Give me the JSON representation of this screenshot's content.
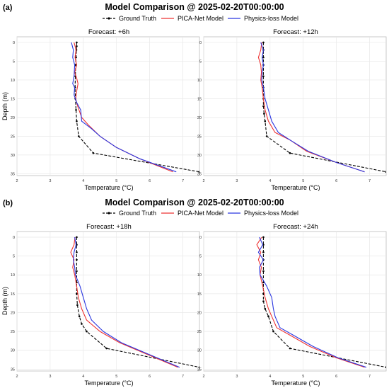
{
  "colors": {
    "ground_truth": "#000000",
    "pica": "#ee3333",
    "physics": "#2a36e0",
    "grid": "#e8e8e8",
    "frame": "#bbbbbb"
  },
  "legend_labels": [
    "Ground Truth",
    "PICA-Net Model",
    "Physics-loss Model"
  ],
  "chart_data": [
    {
      "panel_label": "(a)",
      "title": "Model Comparison @ 2025-02-20T00:00:00",
      "subplots": [
        {
          "type": "line",
          "title": "Forecast: +6h",
          "xlabel": "Temperature (°C)",
          "ylabel": "Depth (m)",
          "xlim": [
            2,
            7.5
          ],
          "ylim": [
            35.5,
            -1.5
          ],
          "inverted_y": true,
          "xticks": [
            2,
            3,
            4,
            5,
            6,
            7
          ],
          "yticks": [
            0,
            5,
            10,
            15,
            20,
            25,
            30,
            35
          ],
          "grid": true,
          "series": [
            {
              "name": "Ground Truth",
              "style": "dashed-dot-markers",
              "x": [
                3.8,
                3.8,
                3.79,
                3.78,
                3.77,
                3.76,
                3.75,
                3.76,
                3.78,
                3.8,
                3.86,
                4.3,
                7.5
              ],
              "y": [
                0,
                1,
                2,
                4,
                6,
                9,
                12,
                15,
                18,
                21,
                25,
                29.5,
                34.5
              ]
            },
            {
              "name": "PICA-Net Model",
              "x": [
                3.72,
                3.78,
                3.75,
                3.8,
                3.74,
                3.8,
                3.84,
                3.8,
                3.77,
                3.83,
                3.95,
                4.15,
                4.5,
                5.0,
                5.7,
                6.7
              ],
              "y": [
                0,
                2,
                4,
                6,
                8,
                9.5,
                11,
                13,
                15,
                17,
                20,
                22,
                25,
                28,
                31,
                34.5
              ]
            },
            {
              "name": "Physics-loss Model",
              "x": [
                3.64,
                3.7,
                3.68,
                3.74,
                3.72,
                3.68,
                3.74,
                3.72,
                3.8,
                3.92,
                3.95,
                4.25,
                4.5,
                5.0,
                5.7,
                6.8
              ],
              "y": [
                0,
                2,
                4,
                6,
                9,
                11,
                12,
                14,
                16,
                18,
                21,
                23,
                25,
                28,
                31,
                34.5
              ]
            }
          ]
        },
        {
          "type": "line",
          "title": "Forecast: +12h",
          "xlabel": "Temperature (°C)",
          "ylabel": "",
          "xlim": [
            2,
            7.5
          ],
          "ylim": [
            35.5,
            -1.5
          ],
          "inverted_y": true,
          "xticks": [
            2,
            3,
            4,
            5,
            6,
            7
          ],
          "yticks": [
            0,
            5,
            10,
            15,
            20,
            25,
            30,
            35
          ],
          "grid": true,
          "series": [
            {
              "name": "Ground Truth",
              "style": "dashed-dot-markers",
              "x": [
                3.8,
                3.8,
                3.8,
                3.8,
                3.8,
                3.8,
                3.8,
                3.8,
                3.82,
                3.85,
                3.9,
                4.6,
                7.5
              ],
              "y": [
                0,
                2,
                4,
                6,
                9,
                12,
                15,
                17,
                19,
                21,
                25,
                29.5,
                34.5
              ]
            },
            {
              "name": "PICA-Net Model",
              "x": [
                3.75,
                3.72,
                3.65,
                3.72,
                3.74,
                3.72,
                3.76,
                3.8,
                3.85,
                3.95,
                4.15,
                4.6,
                5.1,
                6.0,
                6.85
              ],
              "y": [
                0,
                2,
                4,
                6,
                8,
                10,
                12,
                15,
                18,
                21,
                24,
                26,
                29,
                32,
                34.5
              ]
            },
            {
              "name": "Physics-loss Model",
              "x": [
                3.72,
                3.8,
                3.76,
                3.8,
                3.76,
                3.75,
                3.8,
                3.85,
                3.95,
                4.05,
                4.25,
                4.6,
                5.15,
                6.0,
                6.85
              ],
              "y": [
                0,
                2,
                4,
                6,
                8,
                10,
                12,
                15,
                18,
                21,
                24,
                26,
                29,
                32,
                34.5
              ]
            }
          ]
        }
      ]
    },
    {
      "panel_label": "(b)",
      "title": "Model Comparison @ 2025-02-20T00:00:00",
      "subplots": [
        {
          "type": "line",
          "title": "Forecast: +18h",
          "xlabel": "Temperature (°C)",
          "ylabel": "Depth (m)",
          "xlim": [
            2,
            7.5
          ],
          "ylim": [
            35.5,
            -1.5
          ],
          "inverted_y": true,
          "xticks": [
            2,
            3,
            4,
            5,
            6,
            7
          ],
          "yticks": [
            0,
            5,
            10,
            15,
            20,
            25,
            30,
            35
          ],
          "grid": true,
          "series": [
            {
              "name": "Ground Truth",
              "style": "dashed-dot-markers",
              "x": [
                3.8,
                3.8,
                3.8,
                3.8,
                3.8,
                3.8,
                3.8,
                3.82,
                3.88,
                3.95,
                4.1,
                4.7,
                7.5
              ],
              "y": [
                0,
                2,
                4,
                6,
                9,
                12,
                15,
                18,
                21,
                23,
                25,
                29.5,
                34.5
              ]
            },
            {
              "name": "PICA-Net Model",
              "x": [
                3.75,
                3.72,
                3.62,
                3.72,
                3.68,
                3.74,
                3.8,
                3.85,
                3.95,
                4.1,
                4.5,
                5.1,
                5.9,
                6.85
              ],
              "y": [
                0,
                2,
                4,
                6,
                8,
                10,
                13,
                16,
                19,
                22,
                25,
                28,
                31,
                34.5
              ]
            },
            {
              "name": "Physics-loss Model",
              "x": [
                3.74,
                3.78,
                3.72,
                3.7,
                3.74,
                3.76,
                3.9,
                4.0,
                4.1,
                4.25,
                4.6,
                5.15,
                5.95,
                6.9
              ],
              "y": [
                0,
                2,
                4,
                6,
                8,
                10,
                13,
                16,
                19,
                22,
                25,
                28,
                31,
                34.5
              ]
            }
          ]
        },
        {
          "type": "line",
          "title": "Forecast: +24h",
          "xlabel": "Temperature (°C)",
          "ylabel": "",
          "xlim": [
            2,
            7.5
          ],
          "ylim": [
            35.5,
            -1.5
          ],
          "inverted_y": true,
          "xticks": [
            2,
            3,
            4,
            5,
            6,
            7
          ],
          "yticks": [
            0,
            5,
            10,
            15,
            20,
            25,
            30,
            35
          ],
          "grid": true,
          "series": [
            {
              "name": "Ground Truth",
              "style": "dashed-dot-markers",
              "x": [
                3.8,
                3.8,
                3.8,
                3.8,
                3.8,
                3.8,
                3.8,
                3.8,
                3.85,
                3.95,
                4.1,
                4.6,
                7.5
              ],
              "y": [
                0,
                2,
                4,
                6,
                9,
                12,
                15,
                17,
                19,
                21,
                25,
                29.5,
                34.5
              ]
            },
            {
              "name": "PICA-Net Model",
              "x": [
                3.75,
                3.6,
                3.72,
                3.65,
                3.74,
                3.7,
                3.78,
                3.85,
                3.95,
                4.05,
                4.2,
                4.6,
                5.2,
                6.0,
                6.85
              ],
              "y": [
                0,
                2,
                4,
                6,
                8,
                10,
                13,
                16,
                19,
                21,
                24,
                26,
                29,
                32,
                34.5
              ]
            },
            {
              "name": "Physics-loss Model",
              "x": [
                3.68,
                3.78,
                3.65,
                3.8,
                3.68,
                3.7,
                3.9,
                4.05,
                4.1,
                4.15,
                4.3,
                4.7,
                5.3,
                6.05,
                6.9
              ],
              "y": [
                0,
                2,
                4,
                6,
                8,
                10,
                13,
                16,
                19,
                21,
                24,
                26,
                29,
                32,
                34.5
              ]
            }
          ]
        }
      ]
    }
  ]
}
